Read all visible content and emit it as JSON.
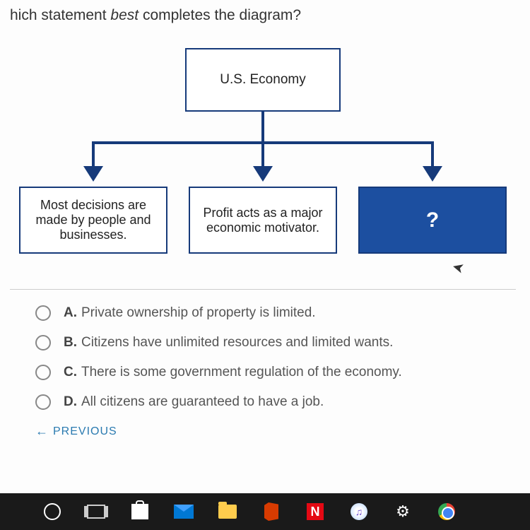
{
  "question": {
    "prefix": "hich statement ",
    "emphasis": "best",
    "suffix": " completes the diagram?"
  },
  "diagram": {
    "root": "U.S. Economy",
    "children": [
      "Most decisions are made by people and businesses.",
      "Profit acts as a major economic motivator.",
      "?"
    ],
    "colors": {
      "border": "#163a7a",
      "fill_highlight": "#1c4fa0",
      "text_highlight": "#ffffff"
    }
  },
  "options": [
    {
      "letter": "A.",
      "text": "Private ownership of property is limited."
    },
    {
      "letter": "B.",
      "text": "Citizens have unlimited resources and limited wants."
    },
    {
      "letter": "C.",
      "text": "There is some government regulation of the economy."
    },
    {
      "letter": "D.",
      "text": "All citizens are guaranteed to have a job."
    }
  ],
  "nav": {
    "previous": "PREVIOUS"
  },
  "taskbar": {
    "netflix_letter": "N",
    "itunes_note": "♫"
  }
}
